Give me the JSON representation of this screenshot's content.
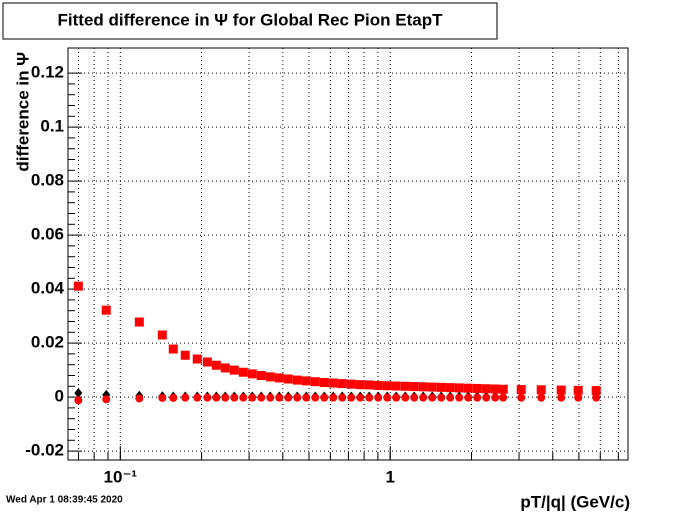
{
  "chart_data": {
    "type": "scatter",
    "title": "Fitted difference in  Ψ  for Global Rec Pion EtapT",
    "x_label": "pT/|q| (GeV/c)",
    "y_label": "difference in Ψ",
    "timestamp": "Wed Apr  1 08:39:45 2020",
    "x_log": true,
    "grid": true,
    "xlim": [
      0.064,
      7.6
    ],
    "ylim": [
      -0.0233,
      0.1293
    ],
    "xticks": [
      {
        "value": 0.1,
        "label": "10⁻¹"
      },
      1
    ],
    "xminor": [
      0.07,
      0.08,
      0.09,
      0.1,
      0.2,
      0.3,
      0.4,
      0.5,
      0.6,
      0.7,
      0.8,
      0.9,
      1,
      2,
      3,
      4,
      5,
      6,
      7
    ],
    "yticks": [
      -0.02,
      0,
      0.02,
      0.04,
      0.06,
      0.08,
      0.1,
      0.12
    ],
    "x": [
      0.0699,
      0.0887,
      0.1176,
      0.1431,
      0.1571,
      0.174,
      0.1928,
      0.2101,
      0.2268,
      0.2448,
      0.2644,
      0.2855,
      0.3082,
      0.3328,
      0.3594,
      0.388,
      0.419,
      0.4524,
      0.4885,
      0.5275,
      0.5696,
      0.615,
      0.6641,
      0.7171,
      0.7743,
      0.8361,
      0.9028,
      0.9747,
      1.052,
      1.137,
      1.227,
      1.325,
      1.431,
      1.545,
      1.668,
      1.801,
      1.945,
      2.1,
      2.268,
      2.448,
      2.621,
      3.057,
      3.625,
      4.299,
      4.97,
      5.794
    ],
    "series": [
      {
        "marker": "diamond",
        "color": "#000000",
        "values": [
          0.0015,
          0.0008,
          0.0005,
          0.0003,
          0.0002,
          0.0002,
          0.0002,
          0.0002,
          0.0002,
          0.0002,
          0.0002,
          0.0002,
          0.0002,
          0.0002,
          0.0002,
          0.0002,
          0.0002,
          0.0002,
          0.0002,
          0.0002,
          0.0002,
          0.0002,
          0.0002,
          0.0002,
          0.0002,
          0.0002,
          0.0002,
          0.0002,
          0.0002,
          0.0002,
          0.0002,
          0.0002,
          0.0002,
          0.0002,
          0.0002,
          0.0002,
          0.0002,
          0.0002,
          0.0002,
          0.0002,
          0.0002,
          0.0001,
          0.0001,
          0.0001,
          0.0001,
          0.0001
        ]
      },
      {
        "marker": "circle",
        "color": "#ff0000",
        "values": [
          -0.0012,
          -0.0008,
          -0.0005,
          -0.0003,
          -0.0003,
          -0.0002,
          -0.0002,
          -0.0002,
          -0.0002,
          -0.0002,
          -0.0002,
          -0.0002,
          -0.0002,
          -0.0002,
          -0.0002,
          -0.0002,
          -0.0002,
          -0.0002,
          -0.0002,
          -0.0002,
          -0.0002,
          -0.0002,
          -0.0002,
          -0.0002,
          -0.0002,
          -0.0002,
          -0.0002,
          -0.0002,
          -0.0002,
          -0.0002,
          -0.0002,
          -0.0002,
          -0.0002,
          -0.0002,
          -0.0002,
          -0.0002,
          -0.0002,
          -0.0002,
          -0.0002,
          -0.0002,
          -0.0002,
          -0.0002,
          -0.0002,
          -0.0002,
          -0.0002,
          -0.0002
        ]
      },
      {
        "marker": "square",
        "color": "#ff0000",
        "values": [
          0.0411,
          0.0322,
          0.0278,
          0.023,
          0.0178,
          0.0155,
          0.0141,
          0.013,
          0.0118,
          0.0108,
          0.01,
          0.0092,
          0.0086,
          0.008,
          0.0075,
          0.0071,
          0.0067,
          0.0063,
          0.006,
          0.0057,
          0.0054,
          0.0052,
          0.005,
          0.0048,
          0.0046,
          0.0045,
          0.0043,
          0.0042,
          0.0041,
          0.004,
          0.0039,
          0.0038,
          0.0037,
          0.0036,
          0.0035,
          0.0034,
          0.0033,
          0.0032,
          0.0031,
          0.003,
          0.0029,
          0.0028,
          0.0027,
          0.0026,
          0.0025,
          0.0024
        ]
      }
    ]
  }
}
